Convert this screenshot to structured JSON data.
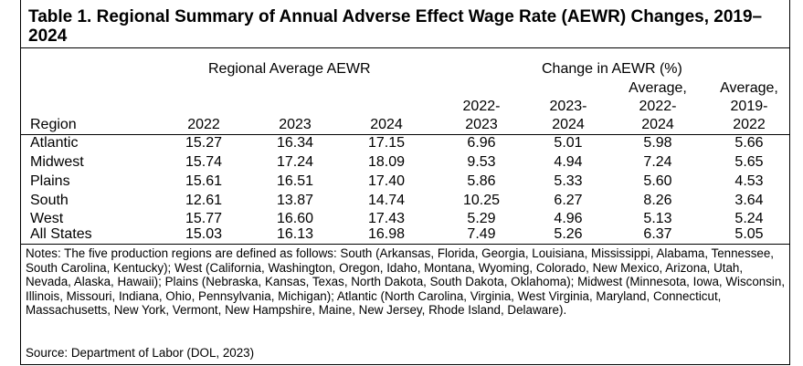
{
  "title": "Table 1. Regional Summary of Annual Adverse Effect Wage Rate (AEWR) Changes, 2019–2024",
  "group_headers": {
    "avg": "Regional Average AEWR",
    "change": "Change in AEWR (%)"
  },
  "columns": {
    "region": "Region",
    "y2022": "2022",
    "y2023": "2023",
    "y2024": "2024",
    "c2223_l1": "2022-",
    "c2223_l2": "2023",
    "c2324_l1": "2023-",
    "c2324_l2": "2024",
    "avg2224_l1": "Average,",
    "avg2224_l2": "2022-",
    "avg2224_l3": "2024",
    "avg1922_l1": "Average,",
    "avg1922_l2": "2019-",
    "avg1922_l3": "2022"
  },
  "rows": [
    {
      "region": "Atlantic",
      "y2022": "15.27",
      "y2023": "16.34",
      "y2024": "17.15",
      "c2223": "6.96",
      "c2324": "5.01",
      "avg2224": "5.98",
      "avg1922": "5.66"
    },
    {
      "region": "Midwest",
      "y2022": "15.74",
      "y2023": "17.24",
      "y2024": "18.09",
      "c2223": "9.53",
      "c2324": "4.94",
      "avg2224": "7.24",
      "avg1922": "5.65"
    },
    {
      "region": "Plains",
      "y2022": "15.61",
      "y2023": "16.51",
      "y2024": "17.40",
      "c2223": "5.86",
      "c2324": "5.33",
      "avg2224": "5.60",
      "avg1922": "4.53"
    },
    {
      "region": "South",
      "y2022": "12.61",
      "y2023": "13.87",
      "y2024": "14.74",
      "c2223": "10.25",
      "c2324": "6.27",
      "avg2224": "8.26",
      "avg1922": "3.64"
    },
    {
      "region": "West",
      "y2022": "15.77",
      "y2023": "16.60",
      "y2024": "17.43",
      "c2223": "5.29",
      "c2324": "4.96",
      "avg2224": "5.13",
      "avg1922": "5.24"
    },
    {
      "region": "All States",
      "y2022": "15.03",
      "y2023": "16.13",
      "y2024": "16.98",
      "c2223": "7.49",
      "c2324": "5.26",
      "avg2224": "6.37",
      "avg1922": "5.05"
    }
  ],
  "notes": "Notes: The five production regions are defined as follows: South (Arkansas, Florida, Georgia, Louisiana, Mississippi, Alabama, Tennessee, South Carolina, Kentucky); West (California, Washington, Oregon, Idaho, Montana, Wyoming, Colorado, New Mexico, Arizona, Utah, Nevada, Alaska, Hawaii); Plains (Nebraska, Kansas, Texas, North Dakota, South Dakota, Oklahoma); Midwest (Minnesota, Iowa, Wisconsin, Illinois, Missouri, Indiana, Ohio, Pennsylvania, Michigan); Atlantic (North Carolina, Virginia, West Virginia, Maryland, Connecticut, Massachusetts, New York, Vermont, New Hampshire, Maine, New Jersey, Rhode Island, Delaware).",
  "source": "Source: Department of Labor (DOL, 2023)"
}
